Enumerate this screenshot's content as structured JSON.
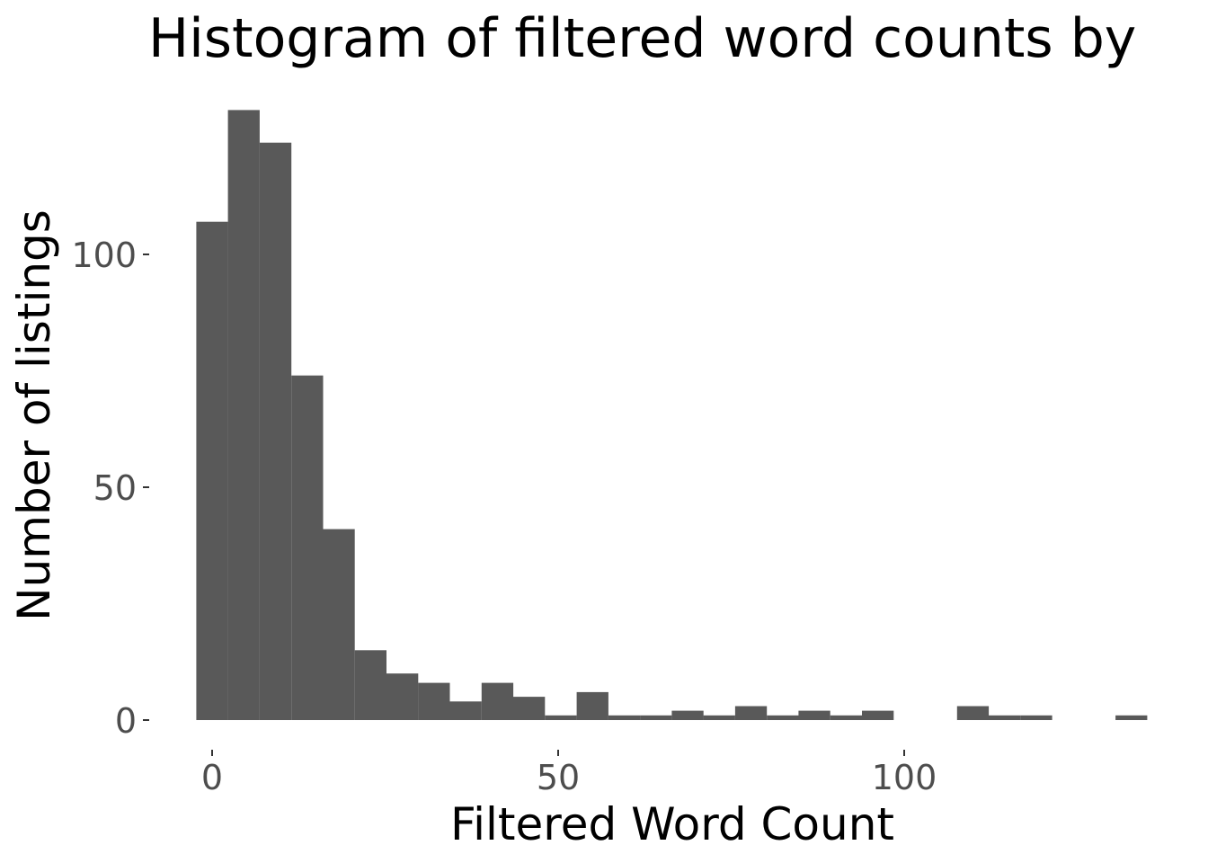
{
  "chart_data": {
    "type": "bar",
    "title": "Histogram of filtered word counts by",
    "xlabel": "Filtered Word Count",
    "ylabel": "Number of listings",
    "bin_width": 4.58,
    "bins": [
      {
        "start": -2.29,
        "end": 2.29,
        "count": 107
      },
      {
        "start": 2.29,
        "end": 6.87,
        "count": 131
      },
      {
        "start": 6.87,
        "end": 11.45,
        "count": 124
      },
      {
        "start": 11.45,
        "end": 16.03,
        "count": 74
      },
      {
        "start": 16.03,
        "end": 20.61,
        "count": 41
      },
      {
        "start": 20.61,
        "end": 25.19,
        "count": 15
      },
      {
        "start": 25.19,
        "end": 29.77,
        "count": 10
      },
      {
        "start": 29.77,
        "end": 34.35,
        "count": 8
      },
      {
        "start": 34.35,
        "end": 38.93,
        "count": 4
      },
      {
        "start": 38.93,
        "end": 43.51,
        "count": 8
      },
      {
        "start": 43.51,
        "end": 48.09,
        "count": 5
      },
      {
        "start": 48.09,
        "end": 52.67,
        "count": 1
      },
      {
        "start": 52.67,
        "end": 57.25,
        "count": 6
      },
      {
        "start": 57.25,
        "end": 61.83,
        "count": 1
      },
      {
        "start": 61.83,
        "end": 66.41,
        "count": 1
      },
      {
        "start": 66.41,
        "end": 70.99,
        "count": 2
      },
      {
        "start": 70.99,
        "end": 75.57,
        "count": 1
      },
      {
        "start": 75.57,
        "end": 80.15,
        "count": 3
      },
      {
        "start": 80.15,
        "end": 84.73,
        "count": 1
      },
      {
        "start": 84.73,
        "end": 89.31,
        "count": 2
      },
      {
        "start": 89.31,
        "end": 93.89,
        "count": 1
      },
      {
        "start": 93.89,
        "end": 98.47,
        "count": 2
      },
      {
        "start": 98.47,
        "end": 103.05,
        "count": 0
      },
      {
        "start": 103.05,
        "end": 107.63,
        "count": 0
      },
      {
        "start": 107.63,
        "end": 112.21,
        "count": 3
      },
      {
        "start": 112.21,
        "end": 116.79,
        "count": 1
      },
      {
        "start": 116.79,
        "end": 121.37,
        "count": 1
      },
      {
        "start": 121.37,
        "end": 125.95,
        "count": 0
      },
      {
        "start": 125.95,
        "end": 130.53,
        "count": 0
      },
      {
        "start": 130.53,
        "end": 135.11,
        "count": 1
      }
    ],
    "x_ticks": [
      0,
      50,
      100
    ],
    "x_tick_labels": [
      "0",
      "50",
      "100"
    ],
    "y_ticks": [
      0,
      50,
      100
    ],
    "y_tick_labels": [
      "0",
      "50",
      "100"
    ],
    "xlim": [
      -4.5,
      137.5
    ],
    "ylim": [
      0,
      131
    ],
    "grid": false,
    "legend": "none",
    "bar_color": "#595959"
  }
}
